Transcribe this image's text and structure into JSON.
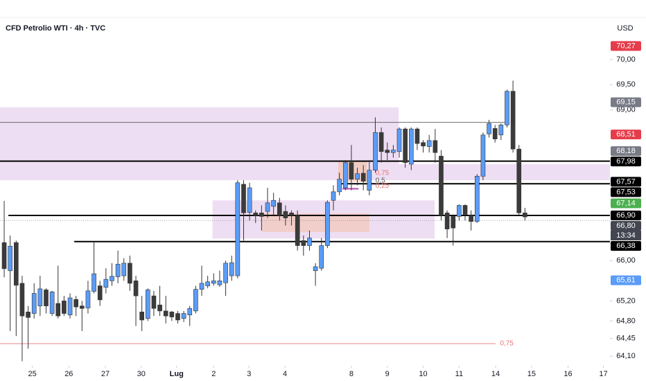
{
  "chart_data": {
    "type": "candlestick",
    "title": "CFD Petrolio WTI · 4h · TVC",
    "currency": "USD",
    "up_color": "#5b9cf6",
    "down_color": "#3b3b3b",
    "ylim": [
      63.91,
      70.84
    ],
    "yticks": [
      {
        "value": 70.0,
        "label": "70,00"
      },
      {
        "value": 69.5,
        "label": "69,50"
      },
      {
        "value": 69.0,
        "label": "69,00"
      },
      {
        "value": 66.0,
        "label": "66,00"
      },
      {
        "value": 65.2,
        "label": "65,20"
      },
      {
        "value": 64.8,
        "label": "64,80"
      },
      {
        "value": 64.45,
        "label": "64,45"
      },
      {
        "value": 64.1,
        "label": "64,10"
      }
    ],
    "xlim": [
      -0.7,
      101.2
    ],
    "xticks": [
      {
        "value": 4.7,
        "label": "25"
      },
      {
        "value": 10.8,
        "label": "26"
      },
      {
        "value": 16.9,
        "label": "27"
      },
      {
        "value": 22.9,
        "label": "30"
      },
      {
        "value": 28.8,
        "label": "Lug"
      },
      {
        "value": 35.0,
        "label": "2"
      },
      {
        "value": 40.9,
        "label": "3"
      },
      {
        "value": 46.9,
        "label": "4"
      },
      {
        "value": 58.0,
        "label": "8"
      },
      {
        "value": 64.0,
        "label": "9"
      },
      {
        "value": 70.0,
        "label": "10"
      },
      {
        "value": 76.0,
        "label": "11"
      },
      {
        "value": 82.1,
        "label": "14"
      },
      {
        "value": 88.1,
        "label": "15"
      },
      {
        "value": 94.2,
        "label": "16"
      },
      {
        "value": 100.1,
        "label": "17"
      }
    ],
    "x": [
      0,
      1,
      2,
      3,
      4,
      5,
      6,
      7,
      8,
      9,
      10,
      11,
      12,
      13,
      14,
      15,
      16,
      17,
      18,
      19,
      20,
      21,
      22,
      23,
      24,
      25,
      26,
      27,
      28,
      29,
      30,
      31,
      32,
      33,
      34,
      35,
      36,
      37,
      38,
      39,
      40,
      41,
      42,
      43,
      44,
      45,
      46,
      47,
      48,
      49,
      50,
      51,
      52,
      53,
      54,
      55,
      56,
      57,
      58,
      59,
      60,
      61,
      62,
      63,
      64,
      65,
      66,
      67,
      68,
      69,
      70,
      71,
      72,
      73,
      74,
      75,
      76,
      77,
      78,
      79,
      80,
      81,
      82,
      83,
      84,
      85,
      86,
      87
    ],
    "open": [
      66.36,
      65.8,
      66.36,
      65.55,
      64.98,
      64.95,
      65.1,
      65.42,
      64.95,
      65.15,
      65.2,
      64.92,
      65.23,
      65.1,
      65.06,
      65.39,
      65.5,
      65.47,
      65.6,
      65.68,
      65.7,
      65.95,
      65.6,
      64.98,
      64.85,
      65.3,
      65.12,
      65.0,
      64.98,
      64.95,
      64.85,
      64.92,
      65.0,
      65.43,
      65.5,
      65.55,
      65.52,
      65.56,
      65.7,
      65.7,
      67.52,
      66.96,
      66.95,
      66.95,
      66.98,
      67.08,
      67.15,
      66.98,
      66.95,
      66.9,
      66.4,
      66.3,
      65.8,
      65.85,
      66.3,
      67.2,
      67.37,
      67.45,
      67.95,
      67.62,
      67.74,
      67.4,
      67.8,
      68.55,
      68.2,
      68.15,
      68.17,
      68.62,
      67.92,
      68.62,
      68.35,
      68.27,
      68.39,
      68.08,
      66.95,
      66.88,
      66.88,
      67.1,
      66.9,
      66.78,
      67.68,
      68.52,
      68.63,
      68.5,
      68.7,
      69.37,
      68.22,
      66.95
    ],
    "high": [
      67.19,
      66.5,
      66.4,
      65.7,
      65.1,
      65.55,
      65.7,
      65.45,
      65.4,
      65.9,
      65.3,
      65.35,
      65.3,
      65.2,
      65.6,
      66.38,
      65.6,
      65.85,
      65.95,
      66.2,
      66.05,
      66.1,
      65.7,
      65.3,
      65.45,
      65.4,
      65.5,
      65.3,
      65.0,
      65.0,
      65.0,
      65.1,
      65.5,
      65.9,
      65.7,
      65.75,
      65.8,
      66.0,
      66.1,
      67.6,
      67.6,
      67.55,
      67.0,
      67.1,
      67.45,
      67.35,
      67.25,
      67.1,
      67.0,
      67.0,
      66.5,
      66.6,
      65.95,
      66.45,
      67.2,
      67.5,
      67.75,
      68.0,
      68.3,
      67.85,
      67.9,
      68.0,
      68.85,
      68.65,
      68.35,
      68.3,
      68.65,
      68.65,
      68.65,
      68.65,
      68.4,
      68.5,
      68.62,
      68.2,
      67.0,
      66.9,
      67.12,
      67.12,
      67.0,
      67.72,
      68.55,
      68.8,
      68.7,
      68.73,
      69.4,
      69.58,
      68.3,
      67.05
    ],
    "low": [
      65.67,
      64.6,
      64.5,
      64.0,
      64.25,
      64.85,
      64.9,
      64.95,
      64.9,
      64.85,
      64.9,
      64.85,
      64.9,
      64.6,
      64.95,
      65.35,
      65.1,
      65.35,
      65.5,
      65.55,
      65.6,
      65.4,
      64.7,
      64.6,
      64.8,
      64.9,
      64.9,
      64.75,
      64.8,
      64.75,
      64.78,
      64.7,
      64.95,
      65.3,
      65.45,
      65.5,
      65.48,
      65.3,
      65.6,
      65.65,
      66.4,
      66.8,
      66.75,
      66.6,
      66.85,
      66.9,
      66.8,
      66.7,
      66.7,
      66.2,
      66.1,
      66.2,
      65.5,
      65.8,
      66.25,
      67.0,
      67.3,
      67.4,
      67.4,
      67.5,
      67.4,
      67.3,
      67.75,
      67.95,
      68.0,
      68.05,
      68.05,
      67.85,
      67.8,
      68.2,
      68.15,
      68.15,
      67.95,
      66.8,
      66.45,
      66.3,
      66.8,
      66.8,
      66.6,
      66.75,
      67.6,
      68.45,
      68.35,
      68.4,
      68.65,
      68.15,
      66.9,
      66.8
    ],
    "close": [
      65.84,
      66.29,
      65.51,
      64.9,
      64.87,
      65.35,
      65.44,
      65.1,
      65.38,
      64.9,
      64.95,
      65.26,
      65.08,
      65.05,
      65.4,
      65.74,
      65.22,
      65.63,
      65.69,
      65.93,
      65.95,
      65.55,
      65.3,
      64.82,
      65.42,
      65.05,
      65.0,
      64.9,
      64.88,
      64.82,
      64.95,
      65.05,
      65.43,
      65.55,
      65.58,
      65.6,
      65.6,
      65.95,
      65.96,
      67.55,
      66.95,
      67.45,
      66.9,
      66.88,
      67.15,
      67.2,
      66.9,
      66.85,
      66.9,
      66.3,
      66.3,
      66.45,
      65.88,
      66.3,
      67.16,
      67.37,
      67.62,
      67.95,
      67.62,
      67.73,
      67.58,
      67.8,
      68.55,
      68.17,
      68.15,
      68.2,
      68.62,
      67.95,
      68.62,
      68.33,
      68.28,
      68.39,
      68.15,
      66.9,
      66.63,
      66.65,
      67.1,
      66.92,
      66.78,
      67.68,
      68.5,
      68.73,
      68.42,
      68.7,
      69.37,
      68.22,
      66.95,
      66.87
    ],
    "zones": [
      {
        "y": [
          67.6,
          69.05
        ],
        "x": [
          -0.7,
          65.9
        ],
        "color": "rgba(206,160,222,0.35)"
      },
      {
        "y": [
          67.6,
          67.92
        ],
        "x": [
          65.9,
          101.2
        ],
        "color": "rgba(206,160,222,0.35)"
      },
      {
        "y": [
          66.44,
          67.2
        ],
        "x": [
          34.8,
          71.9
        ],
        "color": "rgba(206,160,222,0.35)"
      },
      {
        "y": [
          66.57,
          66.94
        ],
        "x": [
          43.1,
          61.0
        ],
        "color": "rgba(244,190,160,0.5)"
      },
      {
        "y": [
          67.57,
          67.97
        ],
        "x": [
          55.8,
          60.6
        ],
        "color": "rgba(244,190,160,0.6)"
      }
    ],
    "levels": [
      {
        "value": 68.75,
        "x": [
          -0.7,
          84.4
        ],
        "color": "#555555",
        "width": 0.8
      },
      {
        "value": 67.98,
        "x": [
          -0.7,
          101.2
        ],
        "color": "#000000",
        "width": 2
      },
      {
        "value": 67.53,
        "x": [
          56.0,
          101.2
        ],
        "color": "#000000",
        "width": 2
      },
      {
        "value": 67.43,
        "x": [
          56.5,
          59.2
        ],
        "color": "#b04ab0",
        "width": 2
      },
      {
        "value": 66.9,
        "x": [
          0.7,
          101.2
        ],
        "color": "#000000",
        "width": 2
      },
      {
        "value": 66.8,
        "x": [
          -0.7,
          101.2
        ],
        "color": "#888888",
        "width": 0.8,
        "dash": true
      },
      {
        "value": 66.38,
        "x": [
          11.7,
          101.2
        ],
        "color": "#000000",
        "width": 2
      },
      {
        "value": 64.35,
        "x": [
          -0.7,
          82.1
        ],
        "color": "#e57373",
        "width": 0.8
      }
    ],
    "annotations": [
      {
        "value": 67.74,
        "x": 61.8,
        "label": "0,75",
        "color": "#e57373"
      },
      {
        "value": 67.59,
        "x": 61.8,
        "label": "0,5",
        "color": "#555555"
      },
      {
        "value": 67.49,
        "x": 61.8,
        "label": "0,25",
        "color": "#e57373"
      },
      {
        "value": 68.75,
        "x": 84.4,
        "label": "0",
        "color": "#333333"
      },
      {
        "value": 64.35,
        "x": 82.6,
        "label": "0,75",
        "color": "#e57373"
      }
    ],
    "price_labels": [
      {
        "value": 70.27,
        "label": "70,27",
        "color": "#e53d4a"
      },
      {
        "value": 69.15,
        "label": "69,15",
        "color": "#787b86"
      },
      {
        "value": 68.51,
        "label": "68,51",
        "color": "#e53d4a"
      },
      {
        "value": 68.18,
        "label": "68,18",
        "color": "#787b86"
      },
      {
        "value": 67.98,
        "label": "67,98",
        "color": "#000000"
      },
      {
        "value": 67.57,
        "label": "67,57",
        "color": "#000000"
      },
      {
        "value": 67.53,
        "label": "67,53",
        "color": "#000000"
      },
      {
        "value": 67.14,
        "label": "67,14",
        "color": "#4caf50"
      },
      {
        "value": 66.9,
        "label": "66,90",
        "color": "#000000"
      },
      {
        "value": 66.8,
        "label": "66,80",
        "color": "#434651"
      },
      {
        "value": 66.38,
        "label": "66,38",
        "color": "#000000"
      },
      {
        "value": 65.61,
        "label": "65,61",
        "color": "#5b9cf6"
      }
    ],
    "countdown": "13:34"
  }
}
